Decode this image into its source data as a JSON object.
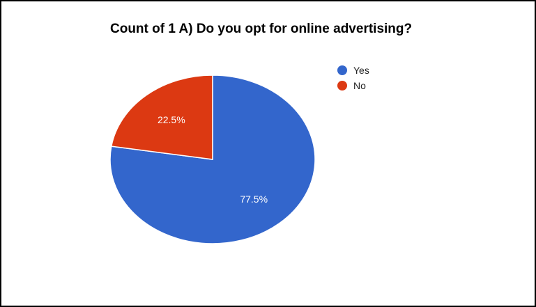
{
  "chart_data": {
    "type": "pie",
    "title": "Count of 1 A) Do you opt for online advertising?",
    "slices": [
      {
        "label": "Yes",
        "value": 77.5,
        "display": "77.5%",
        "color": "#3366cc"
      },
      {
        "label": "No",
        "value": 22.5,
        "display": "22.5%",
        "color": "#dc3912"
      }
    ],
    "legend_position": "right"
  }
}
